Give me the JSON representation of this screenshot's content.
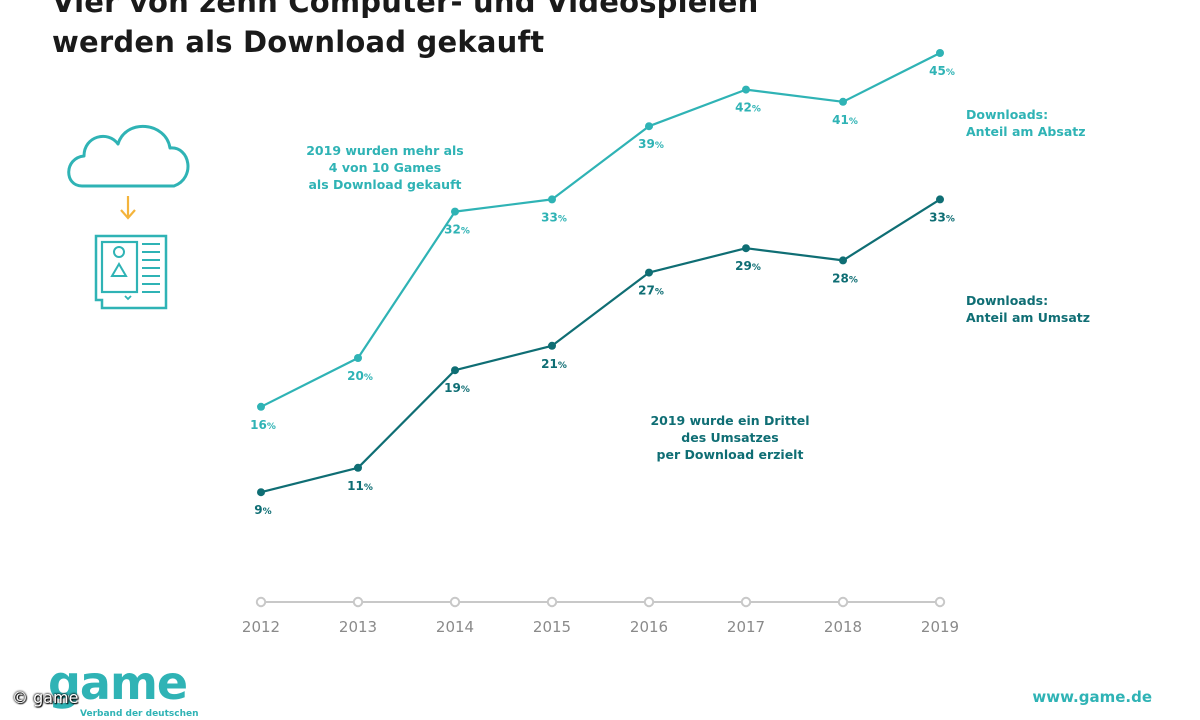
{
  "title": {
    "line1": "Vier von zehn Computer- und Videospielen",
    "line2": "werden als Download gekauft"
  },
  "colors": {
    "series_absatz": "#2fb3b5",
    "series_umsatz": "#0f6e74",
    "axis": "#c8c8c8",
    "arrow": "#f4b43c"
  },
  "icons": [
    "cloud-icon",
    "download-arrow-icon",
    "game-box-icon"
  ],
  "chart_data": {
    "type": "line",
    "x": [
      "2012",
      "2013",
      "2014",
      "2015",
      "2016",
      "2017",
      "2018",
      "2019"
    ],
    "series": [
      {
        "name": "Downloads: Anteil am Absatz",
        "values": [
          16,
          20,
          32,
          33,
          39,
          42,
          41,
          45
        ]
      },
      {
        "name": "Downloads: Anteil am Umsatz",
        "values": [
          9,
          11,
          19,
          21,
          27,
          29,
          28,
          33
        ]
      }
    ],
    "unit": "%",
    "grid": false,
    "legend_position": "right",
    "annotations": [
      "2019 wurden mehr als\n4 von 10 Games\nals Download gekauft",
      "2019 wurde ein Drittel\ndes Umsatzes\nper Download erzielt"
    ]
  },
  "legend": {
    "absatz": "Downloads:\nAnteil am Absatz",
    "umsatz": "Downloads:\nAnteil am Umsatz"
  },
  "footer": {
    "logo": "game",
    "logo_sub": "Verband der deutschen",
    "credit": "© game",
    "url": "www.game.de"
  }
}
